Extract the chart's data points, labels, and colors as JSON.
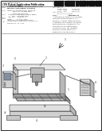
{
  "bg_color": "#ffffff",
  "border_color": "#555555",
  "barcode_color": "#111111",
  "text_color": "#333333",
  "light_gray": "#dddddd",
  "mid_gray": "#aaaaaa",
  "dark_gray": "#666666",
  "line_color": "#444444",
  "machine_light": "#e0e0e0",
  "machine_mid": "#c0c0c0",
  "machine_dark": "#909090",
  "machine_darker": "#707070",
  "table_color": "#d8d8d8",
  "bed_color": "#c8c8c8",
  "shadow_color": "#b0b0b0"
}
